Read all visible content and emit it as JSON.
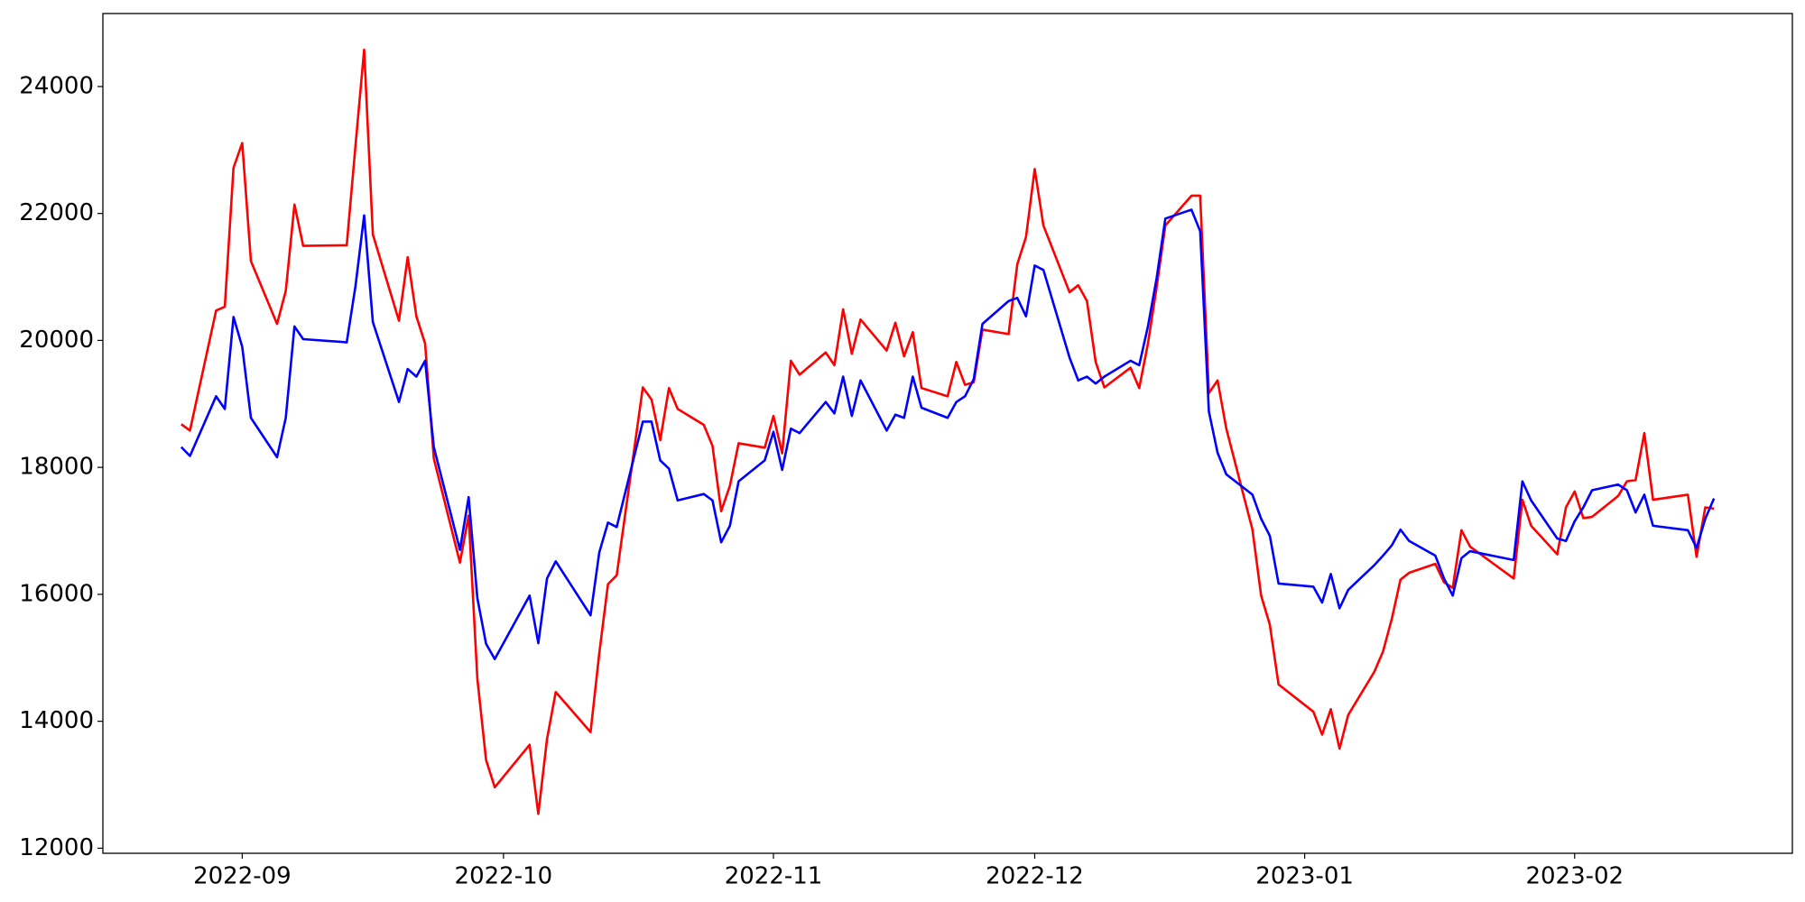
{
  "chart_data": {
    "type": "line",
    "x": [
      "2022-08-25",
      "2022-08-26",
      "2022-08-29",
      "2022-08-30",
      "2022-08-31",
      "2022-09-01",
      "2022-09-02",
      "2022-09-05",
      "2022-09-06",
      "2022-09-07",
      "2022-09-08",
      "2022-09-13",
      "2022-09-14",
      "2022-09-15",
      "2022-09-16",
      "2022-09-19",
      "2022-09-20",
      "2022-09-21",
      "2022-09-22",
      "2022-09-23",
      "2022-09-26",
      "2022-09-27",
      "2022-09-28",
      "2022-09-29",
      "2022-09-30",
      "2022-10-04",
      "2022-10-05",
      "2022-10-06",
      "2022-10-07",
      "2022-10-11",
      "2022-10-12",
      "2022-10-13",
      "2022-10-14",
      "2022-10-17",
      "2022-10-18",
      "2022-10-19",
      "2022-10-20",
      "2022-10-21",
      "2022-10-24",
      "2022-10-25",
      "2022-10-26",
      "2022-10-27",
      "2022-10-28",
      "2022-10-31",
      "2022-11-01",
      "2022-11-02",
      "2022-11-03",
      "2022-11-04",
      "2022-11-07",
      "2022-11-08",
      "2022-11-09",
      "2022-11-10",
      "2022-11-11",
      "2022-11-14",
      "2022-11-15",
      "2022-11-16",
      "2022-11-17",
      "2022-11-18",
      "2022-11-21",
      "2022-11-22",
      "2022-11-23",
      "2022-11-24",
      "2022-11-25",
      "2022-11-28",
      "2022-11-29",
      "2022-11-30",
      "2022-12-01",
      "2022-12-02",
      "2022-12-05",
      "2022-12-06",
      "2022-12-07",
      "2022-12-08",
      "2022-12-09",
      "2022-12-12",
      "2022-12-13",
      "2022-12-14",
      "2022-12-15",
      "2022-12-16",
      "2022-12-19",
      "2022-12-20",
      "2022-12-21",
      "2022-12-22",
      "2022-12-23",
      "2022-12-26",
      "2022-12-27",
      "2022-12-28",
      "2022-12-29",
      "2023-01-02",
      "2023-01-03",
      "2023-01-04",
      "2023-01-05",
      "2023-01-06",
      "2023-01-09",
      "2023-01-10",
      "2023-01-11",
      "2023-01-12",
      "2023-01-13",
      "2023-01-16",
      "2023-01-17",
      "2023-01-18",
      "2023-01-19",
      "2023-01-20",
      "2023-01-25",
      "2023-01-26",
      "2023-01-27",
      "2023-01-30",
      "2023-01-31",
      "2023-02-01",
      "2023-02-02",
      "2023-02-03",
      "2023-02-06",
      "2023-02-07",
      "2023-02-08",
      "2023-02-09",
      "2023-02-10",
      "2023-02-14",
      "2023-02-15",
      "2023-02-16",
      "2023-02-17"
    ],
    "series": [
      {
        "color": "#ff0000",
        "values": [
          18680,
          18580,
          20470,
          20530,
          22720,
          23110,
          21250,
          20260,
          20780,
          22140,
          21490,
          21500,
          23060,
          24580,
          21670,
          20310,
          21310,
          20380,
          19950,
          18140,
          16500,
          17240,
          14670,
          13390,
          12960,
          13630,
          12540,
          13720,
          14460,
          13830,
          15070,
          16160,
          16300,
          19260,
          19070,
          18430,
          19250,
          18920,
          18670,
          18340,
          17310,
          17710,
          18380,
          18310,
          18810,
          18220,
          19680,
          19460,
          19810,
          19610,
          20490,
          19790,
          20330,
          19840,
          20280,
          19750,
          20130,
          19250,
          19120,
          19660,
          19300,
          19340,
          20170,
          20100,
          21200,
          21630,
          22700,
          21810,
          20760,
          20870,
          20620,
          19660,
          19260,
          19570,
          19250,
          19950,
          20840,
          21810,
          22280,
          22280,
          19170,
          19370,
          18610,
          17020,
          15980,
          15520,
          14580,
          14150,
          13790,
          14190,
          13570,
          14100,
          14780,
          15100,
          15610,
          16230,
          16340,
          16480,
          16190,
          16100,
          17010,
          16750,
          16250,
          17490,
          17080,
          16630,
          17370,
          17620,
          17200,
          17220,
          17550,
          17780,
          17800,
          18540,
          17490,
          17570,
          16590,
          17370,
          17350
        ]
      },
      {
        "color": "#0000ff",
        "values": [
          18320,
          18180,
          19120,
          18920,
          20370,
          19900,
          18780,
          18160,
          18780,
          20220,
          20020,
          19970,
          20850,
          21970,
          20290,
          19030,
          19550,
          19430,
          19680,
          18320,
          16700,
          17530,
          15940,
          15220,
          14980,
          15980,
          15230,
          16250,
          16520,
          15670,
          16660,
          17130,
          17060,
          18720,
          18720,
          18110,
          17980,
          17480,
          17580,
          17480,
          16820,
          17080,
          17780,
          18110,
          18560,
          17960,
          18610,
          18540,
          19030,
          18850,
          19430,
          18810,
          19370,
          18580,
          18830,
          18780,
          19430,
          18940,
          18780,
          19030,
          19120,
          19390,
          20260,
          20620,
          20670,
          20380,
          21180,
          21110,
          19730,
          19370,
          19430,
          19320,
          19430,
          19680,
          19610,
          20220,
          20980,
          21920,
          22060,
          21720,
          18880,
          18230,
          17890,
          17570,
          17190,
          16920,
          16170,
          16120,
          15870,
          16320,
          15780,
          16070,
          16460,
          16610,
          16770,
          17020,
          16840,
          16610,
          16250,
          15980,
          16570,
          16680,
          16540,
          17780,
          17480,
          16880,
          16840,
          17150,
          17370,
          17640,
          17730,
          17640,
          17290,
          17570,
          17080,
          17010,
          16730,
          17190,
          17510
        ]
      }
    ],
    "xlim": [
      "2022-08-16",
      "2023-02-26"
    ],
    "xticks": [
      {
        "value": "2022-09-01",
        "label": "2022-09"
      },
      {
        "value": "2022-10-01",
        "label": "2022-10"
      },
      {
        "value": "2022-11-01",
        "label": "2022-11"
      },
      {
        "value": "2022-12-01",
        "label": "2022-12"
      },
      {
        "value": "2023-01-01",
        "label": "2023-01"
      },
      {
        "value": "2023-02-01",
        "label": "2023-02"
      }
    ],
    "ylim": [
      11920,
      25150
    ],
    "yticks": [
      12000,
      14000,
      16000,
      18000,
      20000,
      22000,
      24000
    ],
    "grid": false
  }
}
